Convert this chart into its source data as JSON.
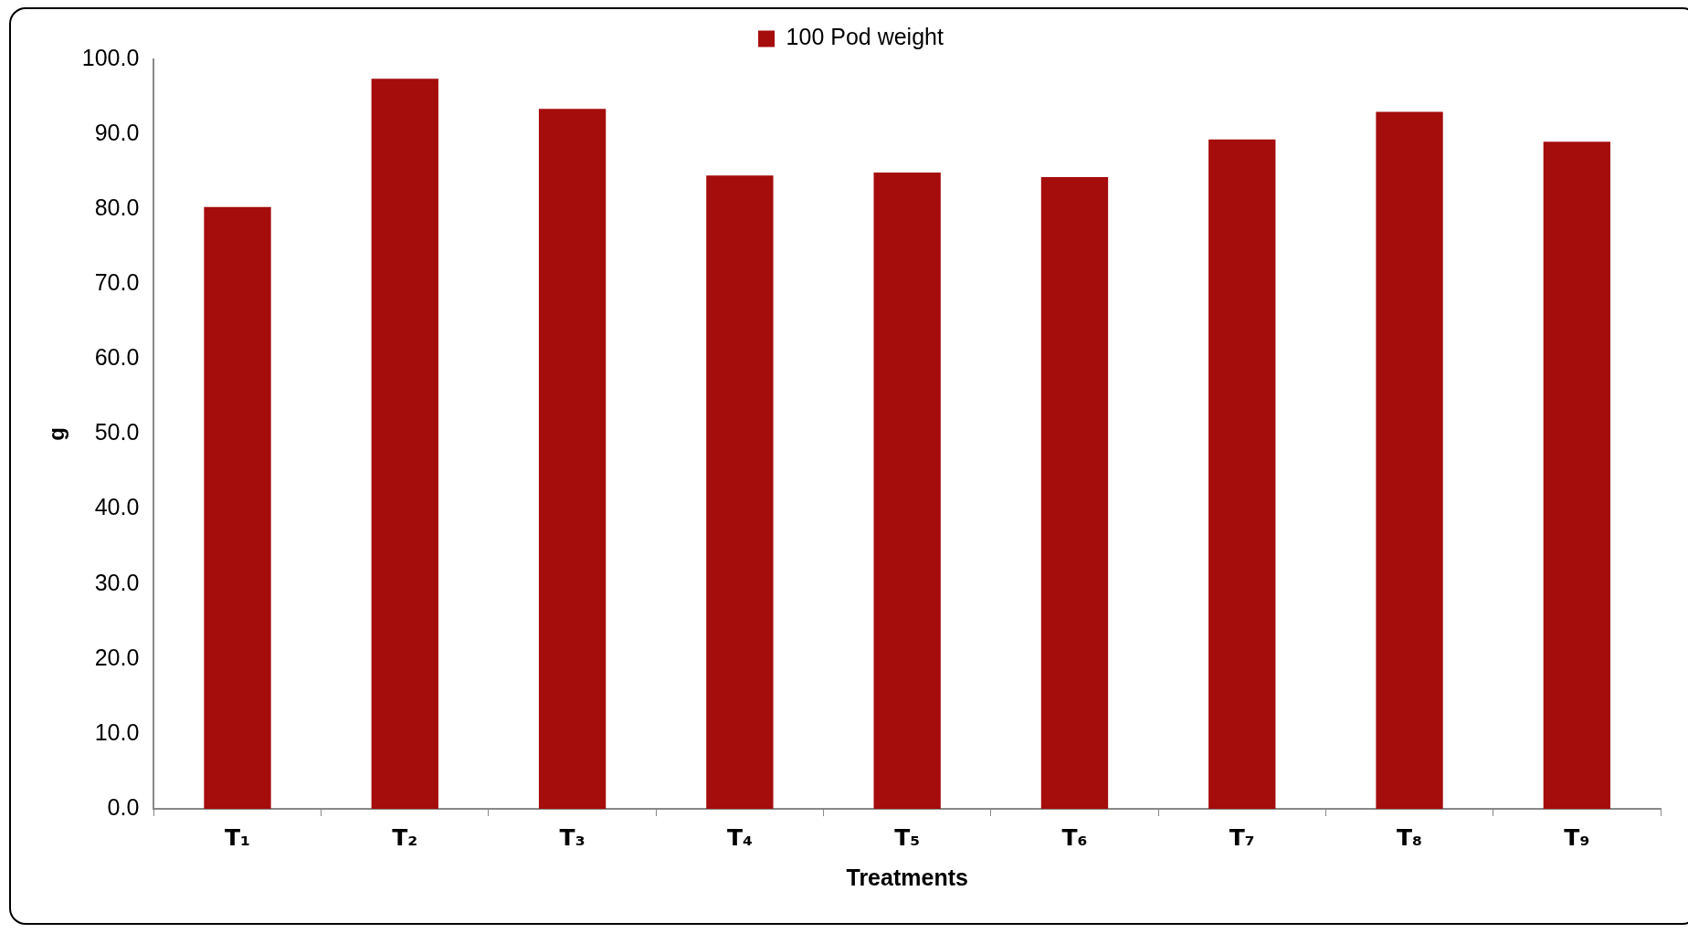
{
  "chart_data": {
    "type": "bar",
    "xlabel": "Treatments",
    "ylabel": "g",
    "categories": [
      "T₁",
      "T₂",
      "T₃",
      "T₄",
      "T₅",
      "T₆",
      "T₇",
      "T₈",
      "T₉"
    ],
    "series": [
      {
        "name": "100 Pod weight",
        "color": "#a50c0c",
        "values": [
          80.3,
          97.4,
          93.4,
          84.5,
          84.9,
          84.3,
          89.3,
          93.0,
          89.0
        ]
      }
    ],
    "ylim": [
      0,
      100
    ],
    "yticks": [
      {
        "value": 0,
        "label": "0.0"
      },
      {
        "value": 10,
        "label": "10.0"
      },
      {
        "value": 20,
        "label": "20.0"
      },
      {
        "value": 30,
        "label": "30.0"
      },
      {
        "value": 40,
        "label": "40.0"
      },
      {
        "value": 50,
        "label": "50.0"
      },
      {
        "value": 60,
        "label": "60.0"
      },
      {
        "value": 70,
        "label": "70.0"
      },
      {
        "value": 80,
        "label": "80.0"
      },
      {
        "value": 90,
        "label": "90.0"
      },
      {
        "value": 100,
        "label": "100.0"
      }
    ],
    "grid": false,
    "legend": "top"
  }
}
